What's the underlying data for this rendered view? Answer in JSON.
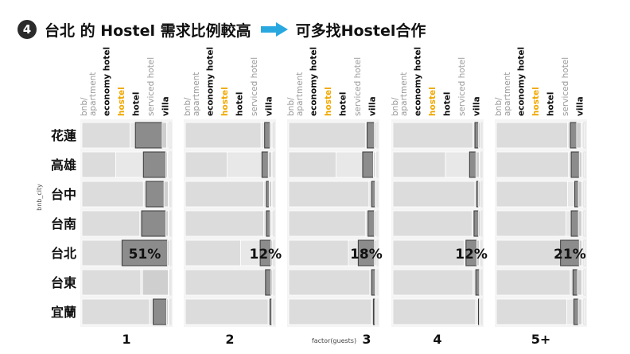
{
  "header": {
    "badge": "4",
    "left_text": "台北 的 Hostel 需求比例較高",
    "right_text": "可多找Hostel合作",
    "arrow_color": "#29a8df"
  },
  "chart_data": {
    "type": "bar",
    "layout": "faceted stacked horizontal bars (one facet per guest count)",
    "ylabel": "bnb_city",
    "xlabel": "factor(guests)",
    "categories": [
      "花蓮",
      "高雄",
      "台中",
      "台南",
      "台北",
      "台東",
      "宜蘭"
    ],
    "legend_order": [
      "bnb/ apartment",
      "economy hotel",
      "hostel",
      "hotel",
      "serviced hotel",
      "villa"
    ],
    "label_colors": {
      "bnb/ apartment": "#9a9a9a",
      "economy hotel": "#111111",
      "hostel": "#f0a800",
      "hotel": "#111111",
      "serviced hotel": "#9a9a9a",
      "villa": "#111111"
    },
    "highlight_city": "台北",
    "facets": [
      {
        "label": "1",
        "highlight_label": "51%",
        "rows": [
          {
            "city": "花蓮",
            "values": [
              0.54,
              0.06,
              0.3,
              0.05,
              0.03,
              0.02
            ]
          },
          {
            "city": "高雄",
            "values": [
              0.38,
              0.31,
              0.25,
              0.02,
              0.02,
              0.02
            ]
          },
          {
            "city": "台中",
            "values": [
              0.69,
              0.03,
              0.2,
              0.05,
              0.02,
              0.01
            ]
          },
          {
            "city": "台南",
            "values": [
              0.65,
              0.02,
              0.27,
              0.03,
              0.02,
              0.01
            ]
          },
          {
            "city": "台北",
            "values": [
              0.45,
              0.0,
              0.51,
              0.02,
              0.01,
              0.01
            ]
          },
          {
            "city": "台東",
            "values": [
              0.66,
              0.02,
              0.0,
              0.29,
              0.02,
              0.01
            ]
          },
          {
            "city": "宜蘭",
            "values": [
              0.76,
              0.04,
              0.15,
              0.02,
              0.02,
              0.01
            ]
          }
        ]
      },
      {
        "label": "2",
        "highlight_label": "12%",
        "rows": [
          {
            "city": "花蓮",
            "values": [
              0.85,
              0.04,
              0.06,
              0.02,
              0.02,
              0.01
            ]
          },
          {
            "city": "高雄",
            "values": [
              0.47,
              0.39,
              0.07,
              0.04,
              0.02,
              0.01
            ]
          },
          {
            "city": "台中",
            "values": [
              0.88,
              0.03,
              0.03,
              0.03,
              0.02,
              0.01
            ]
          },
          {
            "city": "台南",
            "values": [
              0.88,
              0.03,
              0.04,
              0.02,
              0.02,
              0.01
            ]
          },
          {
            "city": "台北",
            "values": [
              0.62,
              0.22,
              0.12,
              0.02,
              0.01,
              0.01
            ]
          },
          {
            "city": "台東",
            "values": [
              0.9,
              0.0,
              0.06,
              0.02,
              0.01,
              0.01
            ]
          },
          {
            "city": "宜蘭",
            "values": [
              0.93,
              0.02,
              0.02,
              0.01,
              0.01,
              0.01
            ]
          }
        ]
      },
      {
        "label": "3",
        "highlight_label": "18%",
        "rows": [
          {
            "city": "花蓮",
            "values": [
              0.86,
              0.02,
              0.08,
              0.02,
              0.01,
              0.01
            ]
          },
          {
            "city": "高雄",
            "values": [
              0.53,
              0.3,
              0.12,
              0.02,
              0.02,
              0.01
            ]
          },
          {
            "city": "台中",
            "values": [
              0.9,
              0.03,
              0.04,
              0.01,
              0.01,
              0.01
            ]
          },
          {
            "city": "台南",
            "values": [
              0.86,
              0.03,
              0.07,
              0.02,
              0.01,
              0.01
            ]
          },
          {
            "city": "台北",
            "values": [
              0.67,
              0.11,
              0.18,
              0.02,
              0.01,
              0.01
            ]
          },
          {
            "city": "台東",
            "values": [
              0.91,
              0.02,
              0.04,
              0.01,
              0.01,
              0.01
            ]
          },
          {
            "city": "宜蘭",
            "values": [
              0.93,
              0.02,
              0.02,
              0.01,
              0.01,
              0.01
            ]
          }
        ]
      },
      {
        "label": "4",
        "highlight_label": "12%",
        "rows": [
          {
            "city": "花蓮",
            "values": [
              0.9,
              0.02,
              0.04,
              0.02,
              0.01,
              0.01
            ]
          },
          {
            "city": "高雄",
            "values": [
              0.59,
              0.27,
              0.07,
              0.04,
              0.02,
              0.01
            ]
          },
          {
            "city": "台中",
            "values": [
              0.92,
              0.02,
              0.02,
              0.02,
              0.01,
              0.01
            ]
          },
          {
            "city": "台南",
            "values": [
              0.89,
              0.02,
              0.05,
              0.02,
              0.01,
              0.01
            ]
          },
          {
            "city": "台北",
            "values": [
              0.8,
              0.02,
              0.12,
              0.03,
              0.02,
              0.01
            ]
          },
          {
            "city": "台東",
            "values": [
              0.9,
              0.03,
              0.04,
              0.01,
              0.01,
              0.01
            ]
          },
          {
            "city": "宜蘭",
            "values": [
              0.93,
              0.03,
              0.01,
              0.01,
              0.01,
              0.01
            ]
          }
        ]
      },
      {
        "label": "5+",
        "highlight_label": "21%",
        "rows": [
          {
            "city": "花蓮",
            "values": [
              0.8,
              0.03,
              0.07,
              0.05,
              0.03,
              0.02
            ]
          },
          {
            "city": "高雄",
            "values": [
              0.81,
              0.03,
              0.09,
              0.03,
              0.02,
              0.02
            ]
          },
          {
            "city": "台中",
            "values": [
              0.8,
              0.08,
              0.04,
              0.04,
              0.02,
              0.02
            ]
          },
          {
            "city": "台南",
            "values": [
              0.78,
              0.06,
              0.08,
              0.04,
              0.02,
              0.02
            ]
          },
          {
            "city": "台北",
            "values": [
              0.72,
              0.0,
              0.21,
              0.03,
              0.02,
              0.02
            ]
          },
          {
            "city": "台東",
            "values": [
              0.83,
              0.03,
              0.05,
              0.05,
              0.02,
              0.02
            ]
          },
          {
            "city": "宜蘭",
            "values": [
              0.79,
              0.08,
              0.05,
              0.04,
              0.02,
              0.02
            ]
          }
        ]
      }
    ]
  }
}
